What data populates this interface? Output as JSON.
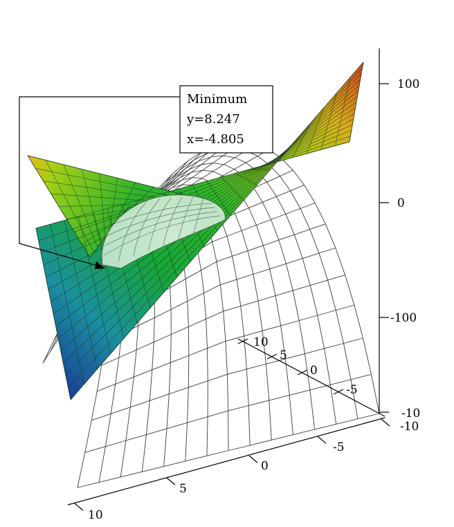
{
  "chart_data": {
    "type": "surface3d",
    "annotation": {
      "lines": [
        "Minimum",
        "y=8.247",
        "x=-4.805"
      ],
      "minimum": {
        "x": -4.805,
        "y": 8.247
      }
    },
    "axes": {
      "z": {
        "range": [
          -150,
          120
        ],
        "ticks": [
          100,
          0,
          -100
        ],
        "tick_labels": [
          "100",
          "0",
          "-100"
        ]
      },
      "y": {
        "range": [
          -10,
          10
        ],
        "ticks": [
          10,
          5,
          0,
          -5,
          -10
        ],
        "tick_labels": [
          "10",
          "5",
          "0",
          "-5",
          "-10"
        ]
      },
      "x": {
        "range": [
          -10,
          10
        ],
        "ticks": [
          -10,
          -5,
          0,
          5,
          10
        ],
        "tick_labels": [
          "-10",
          "-5",
          "0",
          "5",
          "10"
        ]
      }
    },
    "surfaces": [
      {
        "kind": "colored-saddle-plane",
        "colormap": [
          "#1a3f9a",
          "#1b8fa0",
          "#17a63a",
          "#4cc01c",
          "#b8d81a",
          "#e0a818",
          "#d8401a"
        ]
      },
      {
        "kind": "wireframe-paraboloid",
        "color": "#ffffff",
        "edge_color": "#333333"
      }
    ],
    "grid": false,
    "legend": "none"
  }
}
